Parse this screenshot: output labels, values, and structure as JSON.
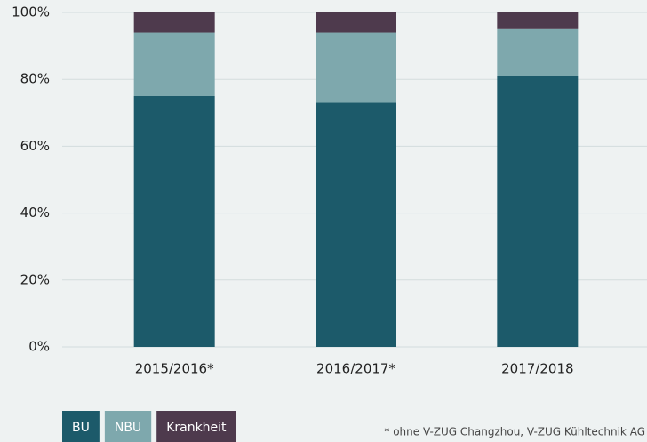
{
  "chart_data": {
    "type": "stacked_bar",
    "categories": [
      "2015/2016*",
      "2016/2017*",
      "2017/2018"
    ],
    "series": [
      {
        "name": "BU",
        "color": "#1c5a6a",
        "values": [
          75,
          73,
          81
        ]
      },
      {
        "name": "NBU",
        "color": "#7ea8ad",
        "values": [
          19,
          21,
          14
        ]
      },
      {
        "name": "Krankheit",
        "color": "#4e3a4d",
        "values": [
          6,
          6,
          5
        ]
      }
    ],
    "ylim": [
      0,
      100
    ],
    "yticks": [
      {
        "value": 0,
        "label": "0%"
      },
      {
        "value": 20,
        "label": "20%"
      },
      {
        "value": 40,
        "label": "40%"
      },
      {
        "value": 60,
        "label": "60%"
      },
      {
        "value": 80,
        "label": "80%"
      },
      {
        "value": 100,
        "label": "100%"
      }
    ],
    "grid": true,
    "annotation": "* ohne V-ZUG Changzhou, V-ZUG Kühltechnik AG"
  }
}
